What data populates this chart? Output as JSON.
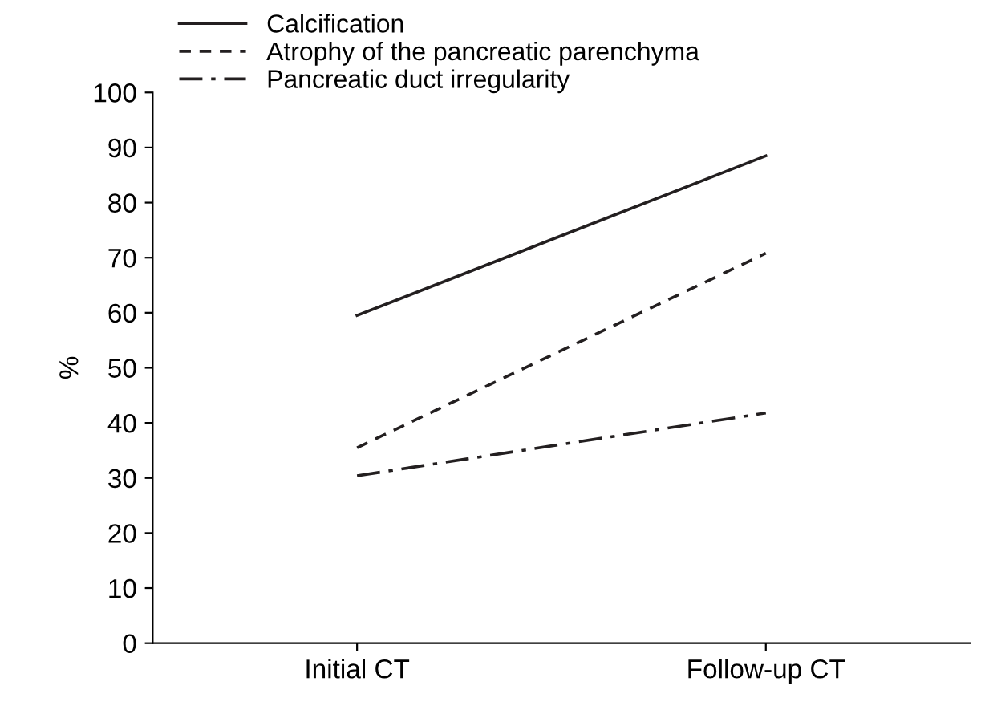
{
  "chart_data": {
    "type": "line",
    "ylabel": "%",
    "categories": [
      "Initial CT",
      "Follow-up CT"
    ],
    "series": [
      {
        "name": "Calcification",
        "color": "#231f20",
        "values": [
          59.5,
          88.5
        ],
        "line_style": "solid"
      },
      {
        "name": "Atrophy of the pancreatic parenchyma",
        "color": "#231f20",
        "values": [
          35.5,
          70.8
        ],
        "line_style": "dashed"
      },
      {
        "name": "Pancreatic duct irregularity",
        "color": "#231f20",
        "values": [
          30.4,
          41.8
        ],
        "line_style": "dashdot"
      }
    ],
    "ylim": [
      0,
      100
    ],
    "yticks": [
      0,
      10,
      20,
      30,
      40,
      50,
      60,
      70,
      80,
      90,
      100
    ],
    "grid": false,
    "legend": "top left",
    "marker": "none"
  }
}
